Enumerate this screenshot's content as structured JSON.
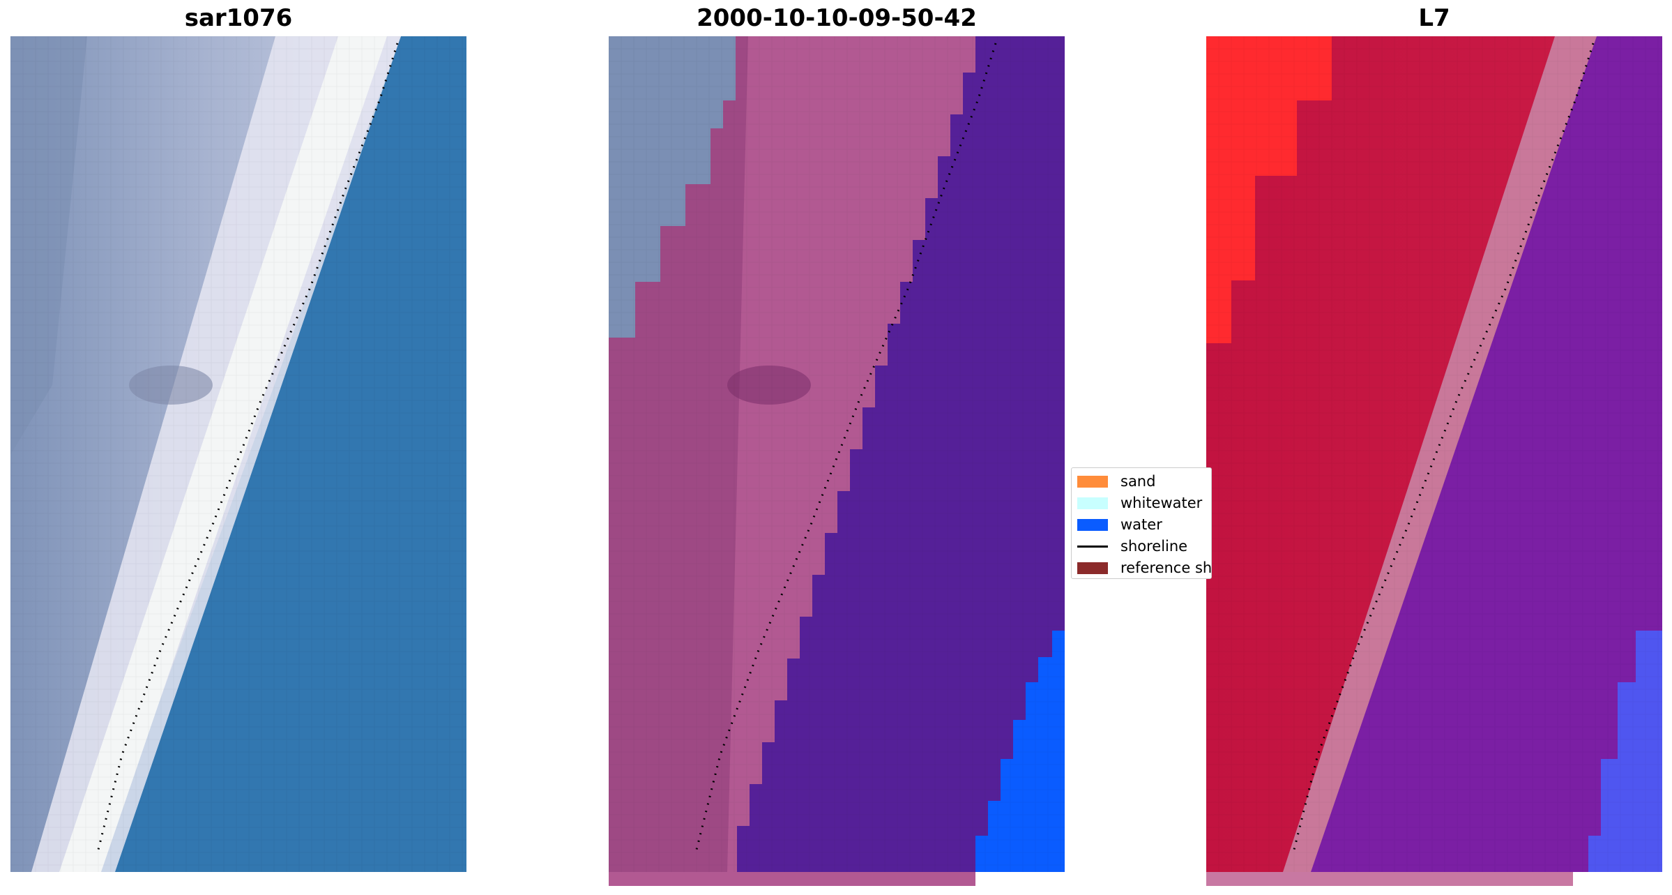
{
  "panels": [
    {
      "title": "sar1076"
    },
    {
      "title": "2000-10-10-09-50-42"
    },
    {
      "title": "L7"
    }
  ],
  "legend": {
    "items": [
      {
        "label": "sand",
        "color": "#ff8c3a"
      },
      {
        "label": "whitewater",
        "color": "#c8ffff"
      },
      {
        "label": "water",
        "color": "#0a5cff"
      },
      {
        "label": "shoreline",
        "color": "#000000"
      },
      {
        "label": "reference sh",
        "color": "#8b2a2a"
      }
    ]
  }
}
